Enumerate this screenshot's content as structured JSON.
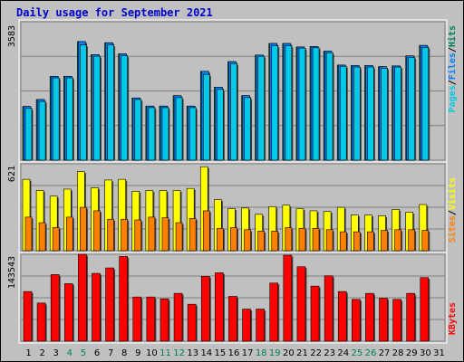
{
  "title": "Daily usage for September 2021",
  "colors": {
    "pages": "#00c8e8",
    "files": "#0080ff",
    "hits": "#00805c",
    "visits": "#ffff00",
    "sites": "#ff8000",
    "kbytes": "#ff0000",
    "weekend_label": "#00805c",
    "weekday_label": "#000000"
  },
  "legend": {
    "top": {
      "pages": "Pages",
      "files": "Files",
      "hits": "Hits",
      "sep": "/"
    },
    "middle": {
      "sites": "Sites",
      "visits": "Visits",
      "sep": "/"
    },
    "bottom": {
      "kbytes": "KBytes"
    }
  },
  "chart_data": [
    {
      "type": "bar",
      "name": "hits-files-pages",
      "ymax_label": "3583",
      "ylim": [
        0,
        3583
      ],
      "x": [
        1,
        2,
        3,
        4,
        5,
        6,
        7,
        8,
        9,
        10,
        11,
        12,
        13,
        14,
        15,
        16,
        17,
        18,
        19,
        20,
        21,
        22,
        23,
        24,
        25,
        26,
        27,
        28,
        29,
        30,
        31
      ],
      "series": [
        {
          "name": "Hits",
          "values": [
            1390,
            1570,
            2170,
            2170,
            3070,
            2730,
            3040,
            2750,
            1610,
            1400,
            1400,
            1670,
            1400,
            2300,
            1890,
            2550,
            1670,
            2720,
            3020,
            3020,
            2930,
            2940,
            2820,
            2460,
            2450,
            2450,
            2420,
            2440,
            2700,
            2970,
            null
          ]
        },
        {
          "name": "Files",
          "values": [
            1390,
            1570,
            2170,
            2170,
            3070,
            2730,
            3040,
            2750,
            1610,
            1400,
            1400,
            1670,
            1400,
            2300,
            1890,
            2550,
            1670,
            2720,
            3020,
            3020,
            2930,
            2940,
            2820,
            2460,
            2450,
            2450,
            2420,
            2440,
            2700,
            2970,
            null
          ]
        },
        {
          "name": "Pages",
          "values": [
            1340,
            1520,
            2130,
            2130,
            2980,
            2690,
            2980,
            2700,
            1570,
            1360,
            1360,
            1620,
            1360,
            2220,
            1830,
            2500,
            1620,
            2690,
            2960,
            2960,
            2900,
            2910,
            2780,
            2430,
            2410,
            2410,
            2380,
            2410,
            2660,
            2920,
            null
          ]
        }
      ]
    },
    {
      "type": "bar",
      "name": "visits-sites",
      "ymax_label": "621",
      "ylim": [
        0,
        621
      ],
      "x": [
        1,
        2,
        3,
        4,
        5,
        6,
        7,
        8,
        9,
        10,
        11,
        12,
        13,
        14,
        15,
        16,
        17,
        18,
        19,
        20,
        21,
        22,
        23,
        24,
        25,
        26,
        27,
        28,
        29,
        30,
        31
      ],
      "series": [
        {
          "name": "Visits",
          "values": [
            510,
            430,
            390,
            440,
            565,
            450,
            505,
            510,
            425,
            430,
            430,
            430,
            445,
            600,
            365,
            300,
            305,
            260,
            315,
            325,
            300,
            285,
            280,
            310,
            255,
            255,
            250,
            295,
            275,
            330,
            null
          ]
        },
        {
          "name": "Sites",
          "values": [
            240,
            200,
            165,
            240,
            310,
            285,
            225,
            225,
            220,
            240,
            235,
            200,
            230,
            285,
            160,
            165,
            150,
            140,
            140,
            165,
            160,
            160,
            150,
            135,
            135,
            135,
            145,
            150,
            150,
            145,
            null
          ]
        }
      ]
    },
    {
      "type": "bar",
      "name": "kbytes",
      "ymax_label": "143543",
      "ylim": [
        0,
        143543
      ],
      "x": [
        1,
        2,
        3,
        4,
        5,
        6,
        7,
        8,
        9,
        10,
        11,
        12,
        13,
        14,
        15,
        16,
        17,
        18,
        19,
        20,
        21,
        22,
        23,
        24,
        25,
        26,
        27,
        28,
        29,
        30,
        31
      ],
      "series": [
        {
          "name": "KBytes",
          "values": [
            82000,
            63000,
            110000,
            95000,
            147000,
            112000,
            121000,
            140000,
            73000,
            73000,
            70000,
            79000,
            61000,
            107000,
            113000,
            74000,
            53000,
            53000,
            96000,
            142000,
            123000,
            91000,
            108000,
            82000,
            69000,
            79000,
            71000,
            69000,
            79000,
            105000,
            null
          ]
        }
      ]
    }
  ],
  "x_labels": [
    {
      "t": "1",
      "w": false
    },
    {
      "t": "2",
      "w": false
    },
    {
      "t": "3",
      "w": false
    },
    {
      "t": "4",
      "w": true
    },
    {
      "t": "5",
      "w": true
    },
    {
      "t": "6",
      "w": false
    },
    {
      "t": "7",
      "w": false
    },
    {
      "t": "8",
      "w": false
    },
    {
      "t": "9",
      "w": false
    },
    {
      "t": "10",
      "w": false
    },
    {
      "t": "11",
      "w": true
    },
    {
      "t": "12",
      "w": true
    },
    {
      "t": "13",
      "w": false
    },
    {
      "t": "14",
      "w": false
    },
    {
      "t": "15",
      "w": false
    },
    {
      "t": "16",
      "w": false
    },
    {
      "t": "17",
      "w": false
    },
    {
      "t": "18",
      "w": true
    },
    {
      "t": "19",
      "w": true
    },
    {
      "t": "20",
      "w": false
    },
    {
      "t": "21",
      "w": false
    },
    {
      "t": "22",
      "w": false
    },
    {
      "t": "23",
      "w": false
    },
    {
      "t": "24",
      "w": false
    },
    {
      "t": "25",
      "w": true
    },
    {
      "t": "26",
      "w": true
    },
    {
      "t": "27",
      "w": false
    },
    {
      "t": "28",
      "w": false
    },
    {
      "t": "29",
      "w": false
    },
    {
      "t": "30",
      "w": false
    },
    {
      "t": "31",
      "w": false
    }
  ]
}
